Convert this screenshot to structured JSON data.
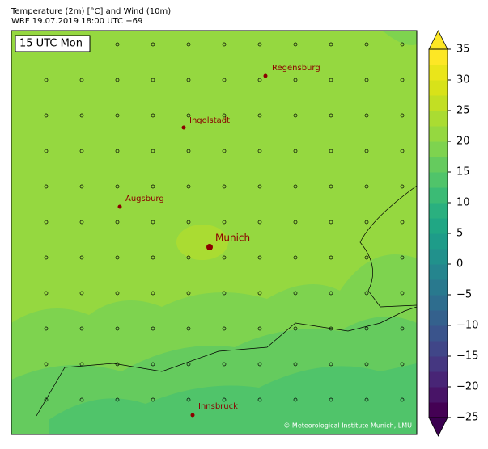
{
  "header": {
    "title": [
      "Temperature (2m) [°C] and Wind (10m)",
      "WRF 19.07.2019 18:00 UTC +69"
    ]
  },
  "map": {
    "time_label": "15 UTC Mon",
    "cities": [
      "Regensburg",
      "Ingolstadt",
      "Augsburg",
      "Munich",
      "Innsbruck"
    ],
    "credit": "© Meteorological Institute Munich, LMU"
  },
  "colorbar": {
    "lim": [
      -25,
      35
    ],
    "ticks": [
      35,
      30,
      25,
      20,
      15,
      10,
      5,
      0,
      {
        "value": -5,
        "label": "−5"
      },
      {
        "value": -10,
        "label": "−10"
      },
      {
        "value": -15,
        "label": "−15"
      },
      {
        "value": -20,
        "label": "−20"
      },
      {
        "value": -25,
        "label": "−25"
      }
    ],
    "colors": [
      "#440154",
      "#481467",
      "#482576",
      "#453781",
      "#404688",
      "#3a548c",
      "#34618d",
      "#2e6d8e",
      "#29798e",
      "#25858e",
      "#21918c",
      "#1e9c89",
      "#20a784",
      "#2ab07f",
      "#3bbb75",
      "#50c46a",
      "#65cb5e",
      "#7ed34f",
      "#95d840",
      "#aadc32",
      "#c2df23",
      "#d8e219",
      "#eae51a",
      "#fde725"
    ]
  }
}
